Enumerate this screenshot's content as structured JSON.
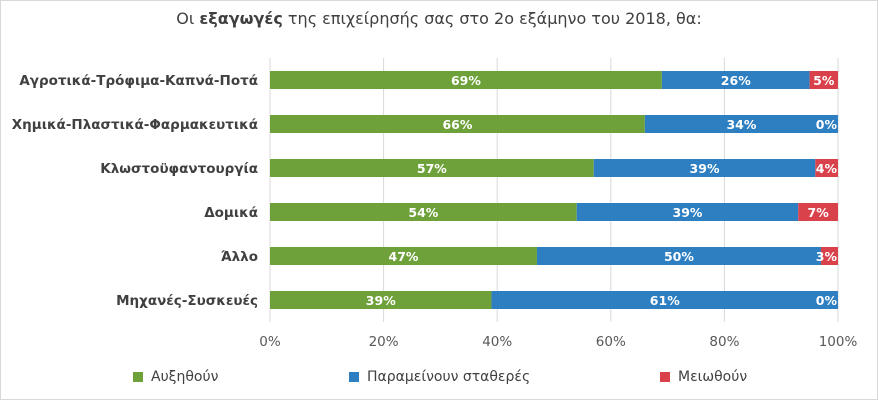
{
  "title": {
    "prefix": "Οι ",
    "bold": "εξαγωγές",
    "suffix": " της επιχείρησής σας στο 2ο εξάμηνο του 2018, θα:"
  },
  "chart_data": {
    "type": "bar",
    "orientation": "horizontal",
    "stacked": "percent",
    "categories": [
      "Αγροτικά-Τρόφιμα-Καπνά-Ποτά",
      "Χημικά-Πλαστικά-Φαρμακευτικά",
      "Κλωστοϋφαντουργία",
      "Δομικά",
      "Άλλο",
      "Μηχανές-Συσκευές"
    ],
    "series": [
      {
        "name": "Αυξηθούν",
        "color": "#6ea13a",
        "values": [
          69,
          66,
          57,
          54,
          47,
          39
        ]
      },
      {
        "name": "Παραμείνουν σταθερές",
        "color": "#2e7fc1",
        "values": [
          26,
          34,
          39,
          39,
          50,
          61
        ]
      },
      {
        "name": "Μειωθούν",
        "color": "#d9424a",
        "values": [
          5,
          0,
          4,
          7,
          3,
          0
        ]
      }
    ],
    "data_labels": [
      [
        "69%",
        "26%",
        "5%"
      ],
      [
        "66%",
        "34%",
        "0%"
      ],
      [
        "57%",
        "39%",
        "4%"
      ],
      [
        "54%",
        "39%",
        "7%"
      ],
      [
        "47%",
        "50%",
        "3%"
      ],
      [
        "39%",
        "61%",
        "0%"
      ]
    ],
    "xlim": [
      0,
      100
    ],
    "x_ticks": [
      "0%",
      "20%",
      "40%",
      "60%",
      "80%",
      "100%"
    ],
    "grid": true,
    "legend_position": "bottom"
  },
  "legend": [
    {
      "label": "Αυξηθούν",
      "color": "#6ea13a"
    },
    {
      "label": "Παραμείνουν σταθερές",
      "color": "#2e7fc1"
    },
    {
      "label": "Μειωθούν",
      "color": "#d9424a"
    }
  ]
}
